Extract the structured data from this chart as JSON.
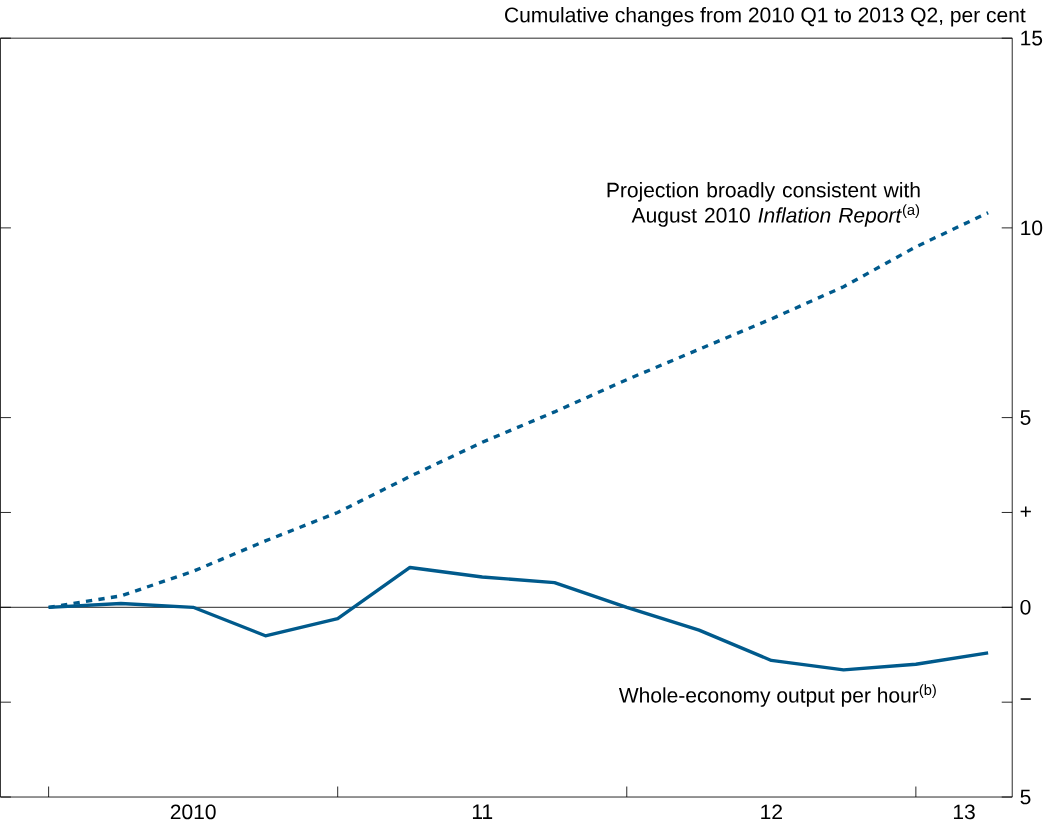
{
  "chart_data": {
    "type": "line",
    "ylabel": "Cumulative changes from 2010 Q1 to 2013 Q2, per cent",
    "x": [
      "2010-01",
      "2010-04",
      "2010-07",
      "2010-10",
      "2011-01",
      "2011-04",
      "2011-07",
      "2011-10",
      "2012-01",
      "2012-04",
      "2012-07",
      "2012-10",
      "2013-01",
      "2013-04"
    ],
    "xlim": [
      "2009-11",
      "2013-05"
    ],
    "xticks": [
      {
        "value": "2010-01",
        "label": null
      },
      {
        "value": "2010-07",
        "label": "2010"
      },
      {
        "value": "2011-01",
        "label": null
      },
      {
        "value": "2011-07",
        "label": "11"
      },
      {
        "value": "2012-01",
        "label": null
      },
      {
        "value": "2012-07",
        "label": "12"
      },
      {
        "value": "2013-01",
        "label": null
      },
      {
        "value": "2013-03",
        "label": "13"
      }
    ],
    "ylim": [
      -5,
      15
    ],
    "yticks": [
      {
        "value": -5,
        "label": "5"
      },
      {
        "value": -2.5,
        "label": "−"
      },
      0,
      {
        "value": 2.5,
        "label": "+"
      },
      5,
      10,
      15
    ],
    "series": [
      {
        "name": "Projection broadly consistent with August 2010 *Inflation Report*$^{(a)}$",
        "color": "#005a8c",
        "line_style": "dashed",
        "values": [
          0,
          0.3,
          0.95,
          1.75,
          2.5,
          3.45,
          4.35,
          5.15,
          6.0,
          6.8,
          7.6,
          8.45,
          9.5,
          10.4
        ]
      },
      {
        "name": "Whole-economy output per hour$^{(b)}$",
        "color": "#005a8c",
        "line_style": "solid",
        "values": [
          0,
          0.1,
          0,
          -0.75,
          -0.3,
          1.05,
          0.8,
          0.65,
          0,
          -0.6,
          -1.4,
          -1.65,
          -1.5,
          -1.2
        ]
      }
    ],
    "ref_lines": [
      {
        "axis": "y",
        "value": 0,
        "color": "#000000"
      }
    ]
  }
}
